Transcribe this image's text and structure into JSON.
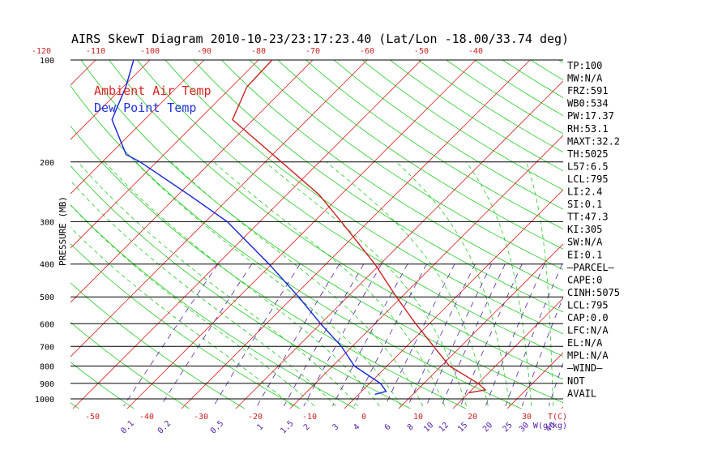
{
  "chart_data": {
    "type": "line",
    "title": "AIRS SkewT Diagram 2010-10-23/23:17:23.40 (Lat/Lon -18.00/33.74 deg)",
    "ylabel": "PRESSURE (MB)",
    "xlabel": "T(C)",
    "mixing_label": "W(g/kg)",
    "pressure_ticks": [
      100,
      200,
      300,
      400,
      500,
      600,
      700,
      800,
      900,
      1000
    ],
    "top_temp_ticks": [
      -120,
      -110,
      -100,
      -90,
      -80,
      -70,
      -60,
      -50,
      -40
    ],
    "bottom_temp_ticks": [
      -50,
      -40,
      -30,
      -20,
      -10,
      0,
      10,
      20,
      30
    ],
    "mixing_ratio_ticks": [
      "0.1",
      "0.2",
      "0.5",
      "1",
      "1.5",
      "2",
      "3",
      "4",
      "6",
      "8",
      "10",
      "12",
      "15",
      "20",
      "25",
      "30",
      "40"
    ],
    "legend": [
      {
        "name": "Ambient Air Temp",
        "color": "#dd2222"
      },
      {
        "name": "Dew Point Temp",
        "color": "#2233dd"
      }
    ],
    "colors": {
      "isotherm": "#dd2222",
      "dry_adiabat": "#22cc22",
      "moist_adiabat": "#22cc22",
      "mixing_ratio": "#5522aa",
      "isobar": "#000000",
      "temperature": "#cc2222",
      "dewpoint": "#1122dd"
    },
    "series": [
      {
        "name": "Ambient Air Temp",
        "points": [
          {
            "p": 100,
            "t": -77.5
          },
          {
            "p": 120,
            "t": -77.2
          },
          {
            "p": 150,
            "t": -73.8
          },
          {
            "p": 200,
            "t": -57.0
          },
          {
            "p": 250,
            "t": -44.0
          },
          {
            "p": 300,
            "t": -35.0
          },
          {
            "p": 400,
            "t": -21.0
          },
          {
            "p": 500,
            "t": -11.0
          },
          {
            "p": 600,
            "t": -2.5
          },
          {
            "p": 700,
            "t": 5.0
          },
          {
            "p": 800,
            "t": 11.5
          },
          {
            "p": 900,
            "t": 20.0
          },
          {
            "p": 940,
            "t": 22.5
          },
          {
            "p": 960,
            "t": 20.0
          }
        ]
      },
      {
        "name": "Dew Point Temp",
        "points": [
          {
            "p": 100,
            "t": -103.0
          },
          {
            "p": 120,
            "t": -99.5
          },
          {
            "p": 150,
            "t": -96.0
          },
          {
            "p": 190,
            "t": -87.0
          },
          {
            "p": 200,
            "t": -83.0
          },
          {
            "p": 250,
            "t": -68.0
          },
          {
            "p": 300,
            "t": -56.0
          },
          {
            "p": 400,
            "t": -40.5
          },
          {
            "p": 500,
            "t": -29.0
          },
          {
            "p": 600,
            "t": -20.0
          },
          {
            "p": 700,
            "t": -12.0
          },
          {
            "p": 800,
            "t": -6.0
          },
          {
            "p": 900,
            "t": 2.0
          },
          {
            "p": 950,
            "t": 4.5
          },
          {
            "p": 970,
            "t": 3.0
          }
        ]
      }
    ],
    "indices": [
      "TP:100",
      "MW:N/A",
      "FRZ:591",
      "WB0:534",
      "PW:17.37",
      "RH:53.1",
      "MAXT:32.2",
      "TH:5025",
      "L57:6.5",
      "LCL:795",
      "LI:2.4",
      "SI:0.1",
      "TT:47.3",
      "KI:305",
      "SW:N/A",
      "EI:0.1",
      "—PARCEL—",
      "CAPE:0",
      "CINH:5075",
      "LCL:795",
      "CAP:0.0",
      "LFC:N/A",
      "EL:N/A",
      "MPL:N/A",
      "—WIND—",
      "NOT",
      "AVAIL"
    ],
    "grid": true,
    "legend_position": "top-left"
  }
}
